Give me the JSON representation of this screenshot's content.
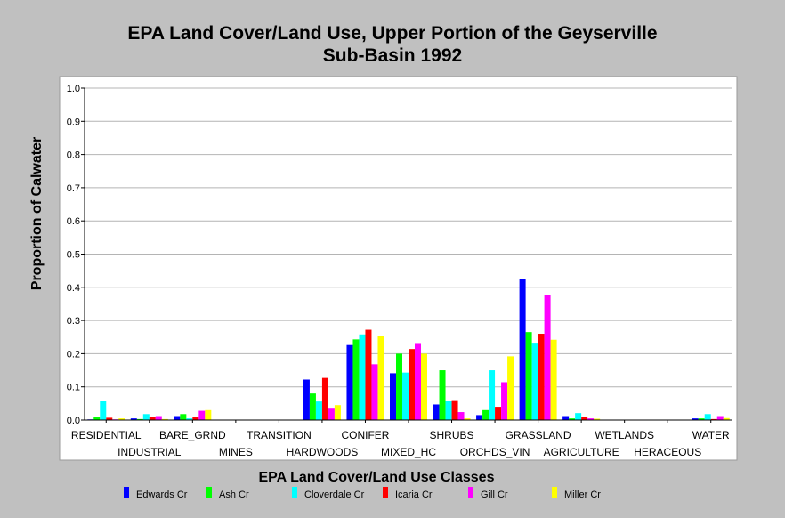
{
  "chart_data": {
    "type": "bar",
    "title_line1": "EPA Land Cover/Land Use, Upper Portion of the Geyserville",
    "title_line2": "Sub-Basin 1992",
    "xlabel": "EPA Land Cover/Land Use Classes",
    "ylabel": "Proportion of Calwater",
    "ylim": [
      0,
      1.0
    ],
    "yticks": [
      "0.0",
      "0.1",
      "0.2",
      "0.3",
      "0.4",
      "0.5",
      "0.6",
      "0.7",
      "0.8",
      "0.9",
      "1.0"
    ],
    "grid": true,
    "legend_position": "bottom",
    "categories": [
      "RESIDENTIAL",
      "INDUSTRIAL",
      "BARE_GRND",
      "MINES",
      "TRANSITION",
      "HARDWOODS",
      "CONIFER",
      "MIXED_HC",
      "SHRUBS",
      "ORCHDS_VIN",
      "GRASSLAND",
      "AGRICULTURE",
      "WETLANDS",
      "HERACEOUS",
      "WATER"
    ],
    "series": [
      {
        "name": "Edwards Cr",
        "color": "#0000ff",
        "values": [
          0.002,
          0.005,
          0.012,
          0,
          0,
          0.122,
          0.226,
          0.141,
          0.047,
          0.015,
          0.424,
          0.012,
          0,
          0,
          0.005
        ]
      },
      {
        "name": "Ash Cr",
        "color": "#00ff00",
        "values": [
          0.01,
          0.003,
          0.018,
          0,
          0,
          0.08,
          0.243,
          0.2,
          0.15,
          0.03,
          0.265,
          0.005,
          0,
          0,
          0.005
        ]
      },
      {
        "name": "Cloverdale Cr",
        "color": "#00ffff",
        "values": [
          0.058,
          0.018,
          0.005,
          0,
          0,
          0.056,
          0.258,
          0.143,
          0.057,
          0.15,
          0.233,
          0.021,
          0,
          0,
          0.018
        ]
      },
      {
        "name": "Icaria Cr",
        "color": "#ff0000",
        "values": [
          0.007,
          0.01,
          0.008,
          0,
          0,
          0.127,
          0.272,
          0.214,
          0.06,
          0.04,
          0.26,
          0.009,
          0,
          0,
          0.003
        ]
      },
      {
        "name": "Gill Cr",
        "color": "#ff00ff",
        "values": [
          0.002,
          0.012,
          0.028,
          0,
          0,
          0.037,
          0.168,
          0.232,
          0.024,
          0.114,
          0.376,
          0.005,
          0,
          0,
          0.012
        ]
      },
      {
        "name": "Miller Cr",
        "color": "#ffff00",
        "values": [
          0.005,
          0.003,
          0.03,
          0,
          0,
          0.045,
          0.254,
          0.2,
          0.005,
          0.192,
          0.242,
          0.004,
          0,
          0,
          0.006
        ]
      }
    ]
  }
}
